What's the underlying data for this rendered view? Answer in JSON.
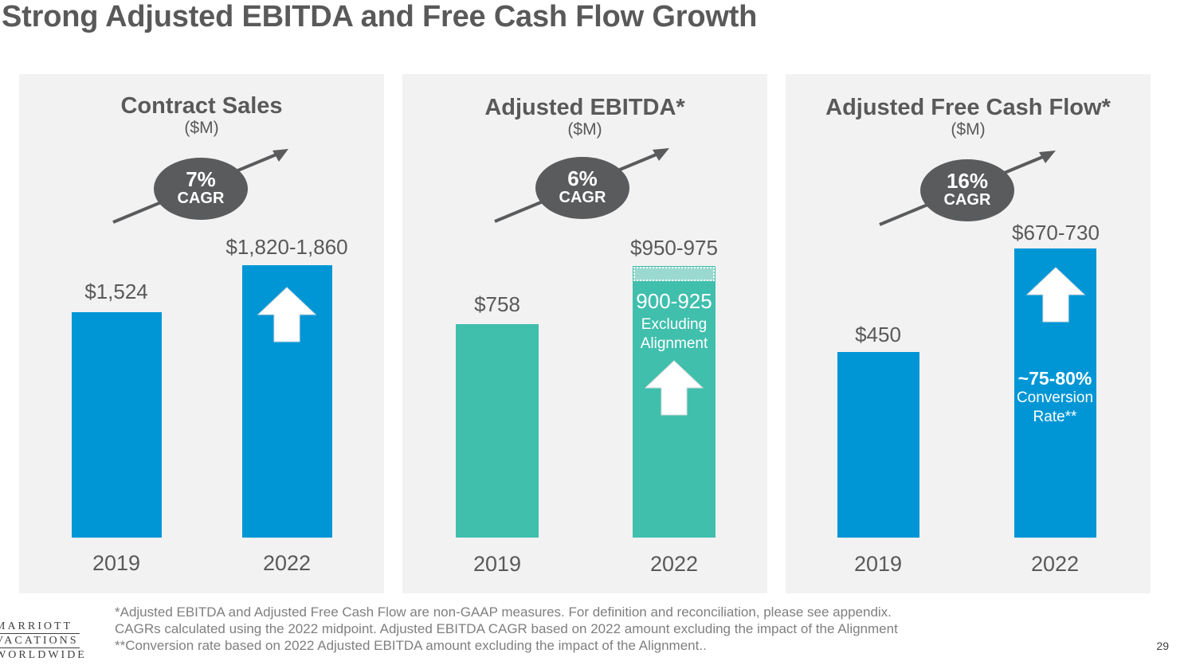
{
  "title": "Strong Adjusted EBITDA and Free Cash Flow Growth",
  "chart_data": [
    {
      "type": "bar",
      "title": "Contract Sales",
      "subtitle": "($M)",
      "categories": [
        "2019",
        "2022"
      ],
      "values": [
        1524,
        1840
      ],
      "value_labels": [
        "$1,524",
        "$1,820-1,860"
      ],
      "cagr": {
        "value": "7%",
        "label": "CAGR"
      },
      "color": "#0096d6"
    },
    {
      "type": "bar",
      "title": "Adjusted EBITDA*",
      "subtitle": "($M)",
      "categories": [
        "2019",
        "2022"
      ],
      "values": [
        758,
        962.5
      ],
      "value_labels": [
        "$758",
        "$950-975"
      ],
      "cagr": {
        "value": "6%",
        "label": "CAGR"
      },
      "color": "#40bfad",
      "inner_annotation": {
        "range": "900-925",
        "line1": "Excluding",
        "line2": "Alignment"
      }
    },
    {
      "type": "bar",
      "title": "Adjusted Free Cash Flow*",
      "subtitle": "($M)",
      "categories": [
        "2019",
        "2022"
      ],
      "values": [
        450,
        700
      ],
      "value_labels": [
        "$450",
        "$670-730"
      ],
      "cagr": {
        "value": "16%",
        "label": "CAGR"
      },
      "color": "#0096d6",
      "inner_annotation": {
        "range": "~75-80%",
        "line1": "Conversion",
        "line2": "Rate**"
      }
    }
  ],
  "footnotes": [
    "*Adjusted EBITDA and Adjusted Free Cash Flow are non-GAAP measures.  For definition and reconciliation, please see appendix.",
    "CAGRs calculated using the 2022 midpoint. Adjusted EBITDA CAGR based on 2022 amount excluding the impact of the Alignment",
    "**Conversion rate based on 2022 Adjusted EBITDA amount excluding the impact of the Alignment.."
  ],
  "logo": {
    "line1": "MARRIOTT",
    "line2": "VACATIONS",
    "line3": "WORLDWIDE"
  },
  "page_number": "29"
}
